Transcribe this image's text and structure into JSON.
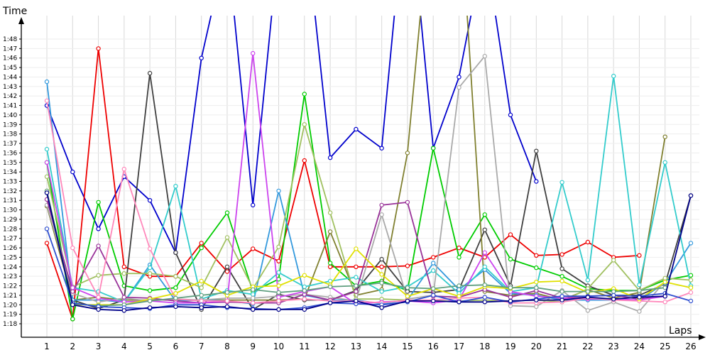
{
  "chart_data": {
    "type": "line",
    "title": "",
    "xlabel": "Laps",
    "ylabel": "Time",
    "x_categories": [
      "1",
      "2",
      "3",
      "4",
      "5",
      "6",
      "7",
      "8",
      "9",
      "10",
      "11",
      "12",
      "13",
      "14",
      "15",
      "16",
      "17",
      "18",
      "19",
      "20",
      "21",
      "22",
      "23",
      "24",
      "25",
      "26"
    ],
    "y_tick_labels": [
      "1:18",
      "1:19",
      "1:20",
      "1:21",
      "1:22",
      "1:23",
      "1:24",
      "1:25",
      "1:26",
      "1:27",
      "1:28",
      "1:29",
      "1:30",
      "1:31",
      "1:32",
      "1:33",
      "1:34",
      "1:35",
      "1:36",
      "1:37",
      "1:38",
      "1:39",
      "1:40",
      "1:41",
      "1:42",
      "1:43",
      "1:44",
      "1:45",
      "1:46",
      "1:47",
      "1:48"
    ],
    "y_min_seconds": 77,
    "y_max_seconds": 113,
    "grid": true,
    "series": [
      {
        "color": "#0000cc",
        "values": [
          101,
          94,
          88,
          93.5,
          91,
          85.5,
          106,
          118,
          90.5,
          118,
          121,
          95.5,
          98.5,
          96.5,
          125,
          96.5,
          104,
          118,
          100,
          93
        ]
      },
      {
        "color": "#ee0000",
        "values": [
          86.5,
          78.5,
          107,
          84,
          83,
          83,
          86.5,
          83.5,
          85.9,
          84.6,
          95.2,
          84,
          84,
          84,
          84.1,
          85,
          86,
          85,
          87.4,
          85.2,
          85.3,
          86.6,
          85,
          85.2
        ]
      },
      {
        "color": "#00cc00",
        "values": [
          95,
          78.5,
          90.8,
          82,
          81.5,
          81.8,
          86,
          89.7,
          81.4,
          82.7,
          102.2,
          84.4,
          82,
          82.5,
          81.5,
          96.5,
          85,
          89.5,
          84.8,
          83.9,
          83,
          81.7,
          81.5,
          81.5,
          82.6,
          83.1
        ]
      },
      {
        "color": "#404040",
        "values": [
          91.8,
          80.5,
          79.6,
          80.5,
          104.4,
          85.5,
          79.5,
          84,
          79.5,
          81.1,
          80.5,
          80.5,
          81.5,
          84.8,
          81.4,
          81.3,
          81.6,
          87.9,
          82,
          96.2,
          83.8,
          82,
          81,
          81,
          82.2,
          91.5
        ]
      },
      {
        "color": "#808030",
        "values": [
          90.4,
          80.5,
          80.8,
          80.5,
          80.5,
          80.5,
          80.5,
          80.5,
          80.5,
          80.5,
          80.6,
          87.7,
          81,
          81.6,
          96,
          125,
          124,
          81.4,
          81,
          81.2,
          80.5,
          81.6,
          80.7,
          81.3,
          97.7
        ]
      },
      {
        "color": "#3399dd",
        "values": [
          103.5,
          80.5,
          80.5,
          80.3,
          84.2,
          80.4,
          80.5,
          80.4,
          80.1,
          92,
          81,
          80.5,
          80.5,
          80.1,
          80.5,
          84.4,
          81.6,
          83.7,
          81.2,
          81,
          80.5,
          80.5,
          80.5,
          80.5,
          82.3,
          86.5
        ]
      },
      {
        "color": "#33cccc",
        "values": [
          96.4,
          81.8,
          81.4,
          80.3,
          83.9,
          92.5,
          80.6,
          81.5,
          81.1,
          83.4,
          81.9,
          82.5,
          82.9,
          81.4,
          81.9,
          83.6,
          81.2,
          84,
          81.4,
          81.8,
          92.9,
          82.6,
          104.1,
          82.1,
          95,
          82
        ]
      },
      {
        "color": "#aaaaaa",
        "values": [
          90.5,
          81.2,
          80.3,
          80.7,
          80.4,
          80.6,
          80.5,
          80.7,
          80.7,
          80.9,
          81.1,
          80.8,
          80.4,
          89.5,
          80.6,
          81,
          102.9,
          106.2,
          79.9,
          79.8,
          81.5,
          79.4,
          80.3,
          79.3,
          82.5
        ]
      },
      {
        "color": "#a0c060",
        "values": [
          93.5,
          81.9,
          83.1,
          83.3,
          83.3,
          83,
          81.8,
          87.1,
          81.7,
          86.1,
          99,
          89.7,
          80.6,
          80.6,
          80.5,
          80.4,
          80.4,
          80.5,
          80.4,
          80.5,
          80.3,
          81.7,
          84.7,
          81.5,
          82.8,
          82.6
        ]
      },
      {
        "color": "#993399",
        "values": [
          91.1,
          81.4,
          86.2,
          80.8,
          80.7,
          80.4,
          80.2,
          80.3,
          80.2,
          80.2,
          81.1,
          80.5,
          81.4,
          90.5,
          90.8,
          80.9,
          80.8,
          81.6,
          80.8,
          81.5,
          80.7,
          80.9,
          81,
          80.6,
          80.9
        ]
      },
      {
        "color": "#cc44ee",
        "values": [
          95,
          81.8,
          80.7,
          80.3,
          80.4,
          80.2,
          80.2,
          80.4,
          106.5,
          80.8,
          81.4,
          81.9,
          80.1,
          80.3,
          80.4,
          80.2,
          80.5,
          85.5,
          81.4,
          80.9,
          80.7,
          80.6,
          80.6,
          80.5,
          80.9
        ]
      },
      {
        "color": "#ff88bb",
        "values": [
          101.5,
          86,
          80.8,
          94.3,
          85.9,
          80.6,
          80.4,
          80.4,
          80.2,
          80.4,
          80.6,
          80.4,
          80.4,
          80.2,
          80.5,
          80.5,
          80.7,
          80.8,
          80.2,
          80.2,
          80.3,
          80.7,
          80.5,
          80.4,
          80.3,
          81.3
        ]
      },
      {
        "color": "#e0e000",
        "values": [
          92,
          80,
          80,
          80,
          80.6,
          81.2,
          82.5,
          81,
          81.9,
          82,
          83.1,
          82.1,
          85.9,
          83.2,
          80.9,
          81.7,
          80.9,
          81.9,
          81.7,
          82.4,
          82.5,
          81.3,
          81.7,
          80.6,
          82.4,
          81.8
        ]
      },
      {
        "color": "#60a080",
        "values": [
          92,
          80.1,
          79.9,
          80,
          80.4,
          80.7,
          81,
          81.3,
          81.6,
          81.3,
          81.5,
          81.9,
          82,
          82.3,
          81.8,
          81.7,
          82,
          82.1,
          81.8,
          81.8,
          81.4,
          81.4,
          81.4,
          81.5,
          81.8
        ]
      },
      {
        "color": "#3050d0",
        "values": [
          88,
          80.2,
          79.8,
          79.7,
          79.6,
          80,
          80,
          79.7,
          79.6,
          79.5,
          79.7,
          80.2,
          80.1,
          80,
          80.3,
          81,
          80.3,
          80.8,
          80.3,
          80.6,
          80.9,
          80.9,
          81,
          80.9,
          81.2,
          80.4
        ]
      },
      {
        "color": "#000088",
        "values": [
          91.8,
          80,
          79.5,
          79.4,
          79.7,
          79.8,
          79.7,
          79.8,
          79.5,
          79.5,
          79.5,
          80.2,
          80.4,
          79.7,
          80.4,
          80.4,
          80.3,
          80.3,
          80.4,
          80.5,
          80.5,
          80.8,
          80.6,
          80.8,
          80.9,
          91.5
        ]
      }
    ]
  }
}
